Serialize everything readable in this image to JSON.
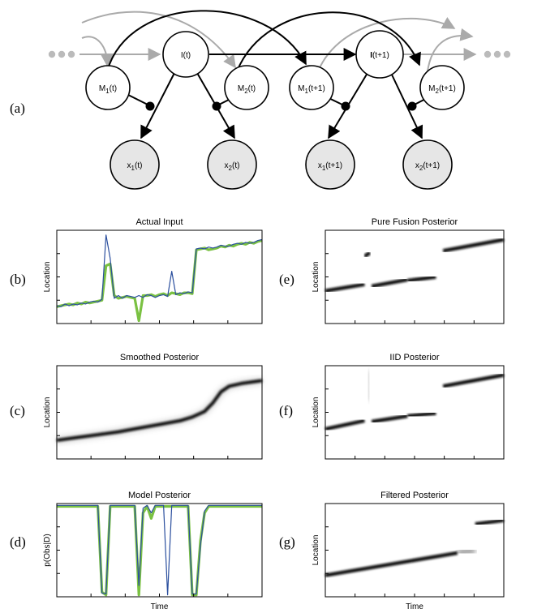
{
  "diagram": {
    "panel_label": "(a)",
    "nodes": {
      "I_t": {
        "main": "I",
        "sub": "",
        "suffix": "(t)"
      },
      "M1_t": {
        "main": "M",
        "sub": "1",
        "suffix": "(t)"
      },
      "M2_t": {
        "main": "M",
        "sub": "2",
        "suffix": "(t)"
      },
      "I_t1": {
        "main": "I",
        "sub": "",
        "suffix": "(t+1)"
      },
      "M1_t1": {
        "main": "M",
        "sub": "1",
        "suffix": "(t+1)"
      },
      "M2_t1": {
        "main": "M",
        "sub": "2",
        "suffix": "(t+1)"
      },
      "x1_t": {
        "main": "x",
        "sub": "1",
        "suffix": "(t)"
      },
      "x2_t": {
        "main": "x",
        "sub": "2",
        "suffix": "(t)"
      },
      "x1_t1": {
        "main": "x",
        "sub": "1",
        "suffix": "(t+1)"
      },
      "x2_t1": {
        "main": "x",
        "sub": "2",
        "suffix": "(t+1)"
      }
    },
    "colors": {
      "observed_fill": "#e6e6e6",
      "latent_fill": "#ffffff",
      "grey_edge": "#aaaaaa",
      "black_edge": "#000000"
    }
  },
  "chart_data": [
    {
      "panel": "(b)",
      "title": "Actual Input",
      "type": "line",
      "xlabel": "",
      "ylabel": "Location",
      "ylim": [
        0,
        1
      ],
      "x": [
        0,
        1,
        2,
        3,
        4,
        5,
        6,
        7,
        8,
        9,
        10,
        11,
        12,
        13,
        14,
        15,
        16,
        17,
        18,
        19,
        20,
        21,
        22,
        23,
        24,
        25,
        26,
        27,
        28,
        29,
        30,
        31,
        32,
        33,
        34,
        35,
        36,
        37,
        38,
        39,
        40,
        41,
        42,
        43,
        44,
        45,
        46,
        47,
        48,
        49,
        50
      ],
      "series": [
        {
          "name": "",
          "color": "#7ac142",
          "values": [
            0.18,
            0.19,
            0.2,
            0.21,
            0.2,
            0.22,
            0.21,
            0.23,
            0.22,
            0.23,
            0.24,
            0.25,
            0.62,
            0.64,
            0.3,
            0.27,
            0.28,
            0.29,
            0.28,
            0.27,
            0.03,
            0.3,
            0.3,
            0.31,
            0.29,
            0.31,
            0.32,
            0.3,
            0.33,
            0.32,
            0.31,
            0.33,
            0.33,
            0.32,
            0.79,
            0.8,
            0.81,
            0.79,
            0.8,
            0.81,
            0.83,
            0.82,
            0.84,
            0.83,
            0.85,
            0.86,
            0.85,
            0.87,
            0.86,
            0.88,
            0.89
          ]
        },
        {
          "name": "",
          "color": "#2b4f9e",
          "values": [
            0.19,
            0.18,
            0.21,
            0.19,
            0.21,
            0.2,
            0.22,
            0.21,
            0.23,
            0.24,
            0.23,
            0.26,
            0.95,
            0.7,
            0.27,
            0.3,
            0.27,
            0.3,
            0.29,
            0.28,
            0.3,
            0.28,
            0.31,
            0.3,
            0.28,
            0.3,
            0.31,
            0.29,
            0.56,
            0.31,
            0.33,
            0.32,
            0.34,
            0.33,
            0.8,
            0.81,
            0.8,
            0.82,
            0.81,
            0.82,
            0.84,
            0.83,
            0.83,
            0.85,
            0.86,
            0.85,
            0.87,
            0.86,
            0.87,
            0.89,
            0.9
          ]
        }
      ]
    },
    {
      "panel": "(c)",
      "title": "Smoothed Posterior",
      "type": "heatmap",
      "xlabel": "",
      "ylabel": "Location",
      "ylim": [
        0,
        1
      ],
      "x": [
        0,
        5,
        10,
        15,
        20,
        25,
        30,
        33,
        36,
        38,
        40,
        42,
        45,
        50
      ],
      "mode": [
        0.2,
        0.23,
        0.26,
        0.29,
        0.33,
        0.37,
        0.41,
        0.45,
        0.51,
        0.6,
        0.72,
        0.78,
        0.81,
        0.84
      ]
    },
    {
      "panel": "(d)",
      "title": "Model Posterior",
      "type": "line",
      "xlabel": "Time",
      "ylabel": "p(Obs|D)",
      "ylim": [
        0,
        1
      ],
      "x": [
        0,
        1,
        2,
        3,
        4,
        5,
        6,
        7,
        8,
        9,
        10,
        11,
        12,
        13,
        14,
        15,
        16,
        17,
        18,
        19,
        20,
        21,
        22,
        23,
        24,
        25,
        26,
        27,
        28,
        29,
        30,
        31,
        32,
        33,
        34,
        35,
        36,
        37,
        38,
        39,
        40,
        41,
        42,
        43,
        44,
        45,
        46,
        47,
        48,
        49,
        50
      ],
      "series": [
        {
          "name": "",
          "color": "#7ac142",
          "values": [
            0.97,
            0.97,
            0.97,
            0.97,
            0.97,
            0.97,
            0.97,
            0.97,
            0.97,
            0.97,
            0.97,
            0.05,
            0.02,
            0.97,
            0.97,
            0.97,
            0.97,
            0.97,
            0.97,
            0.97,
            0.02,
            0.9,
            0.97,
            0.84,
            0.97,
            0.97,
            0.97,
            0.97,
            0.97,
            0.97,
            0.97,
            0.97,
            0.97,
            0.02,
            0.02,
            0.6,
            0.9,
            0.97,
            0.97,
            0.97,
            0.97,
            0.97,
            0.97,
            0.97,
            0.97,
            0.97,
            0.97,
            0.97,
            0.97,
            0.97,
            0.97
          ]
        },
        {
          "name": "",
          "color": "#2b4f9e",
          "values": [
            0.98,
            0.98,
            0.98,
            0.98,
            0.98,
            0.98,
            0.98,
            0.98,
            0.98,
            0.98,
            0.98,
            0.04,
            0.03,
            0.98,
            0.98,
            0.98,
            0.98,
            0.98,
            0.98,
            0.98,
            0.12,
            0.95,
            0.98,
            0.9,
            0.98,
            0.98,
            0.98,
            0.02,
            0.98,
            0.98,
            0.98,
            0.98,
            0.98,
            0.03,
            0.03,
            0.55,
            0.92,
            0.98,
            0.98,
            0.98,
            0.98,
            0.98,
            0.98,
            0.98,
            0.98,
            0.98,
            0.98,
            0.98,
            0.98,
            0.98,
            0.98
          ]
        }
      ]
    },
    {
      "panel": "(e)",
      "title": "Pure Fusion Posterior",
      "type": "heatmap",
      "xlabel": "",
      "ylabel": "Location",
      "ylim": [
        0,
        1
      ],
      "segments": [
        {
          "x": [
            0,
            11
          ],
          "y": [
            0.35,
            0.42
          ]
        },
        {
          "x": [
            11,
            12.5
          ],
          "y": [
            0.72,
            0.76
          ]
        },
        {
          "x": [
            13,
            23
          ],
          "y": [
            0.4,
            0.47
          ]
        },
        {
          "x": [
            23,
            31
          ],
          "y": [
            0.46,
            0.5
          ]
        },
        {
          "x": [
            33,
            50
          ],
          "y": [
            0.78,
            0.9
          ]
        }
      ]
    },
    {
      "panel": "(f)",
      "title": "IID Posterior",
      "type": "heatmap",
      "xlabel": "",
      "ylabel": "Location",
      "ylim": [
        0,
        1
      ],
      "segments": [
        {
          "x": [
            0,
            11
          ],
          "y": [
            0.32,
            0.41
          ]
        },
        {
          "x": [
            13,
            23
          ],
          "y": [
            0.4,
            0.46
          ]
        },
        {
          "x": [
            23,
            31
          ],
          "y": [
            0.46,
            0.49
          ]
        },
        {
          "x": [
            33,
            50
          ],
          "y": [
            0.78,
            0.9
          ]
        }
      ]
    },
    {
      "panel": "(g)",
      "title": "Filtered Posterior",
      "type": "heatmap",
      "xlabel": "Time",
      "ylabel": "Location",
      "ylim": [
        0,
        1
      ],
      "segments": [
        {
          "x": [
            0,
            37
          ],
          "y": [
            0.23,
            0.47
          ]
        },
        {
          "x": [
            37,
            42
          ],
          "y": [
            0.47,
            0.5
          ]
        },
        {
          "x": [
            42,
            50
          ],
          "y": [
            0.78,
            0.82
          ]
        }
      ]
    }
  ]
}
